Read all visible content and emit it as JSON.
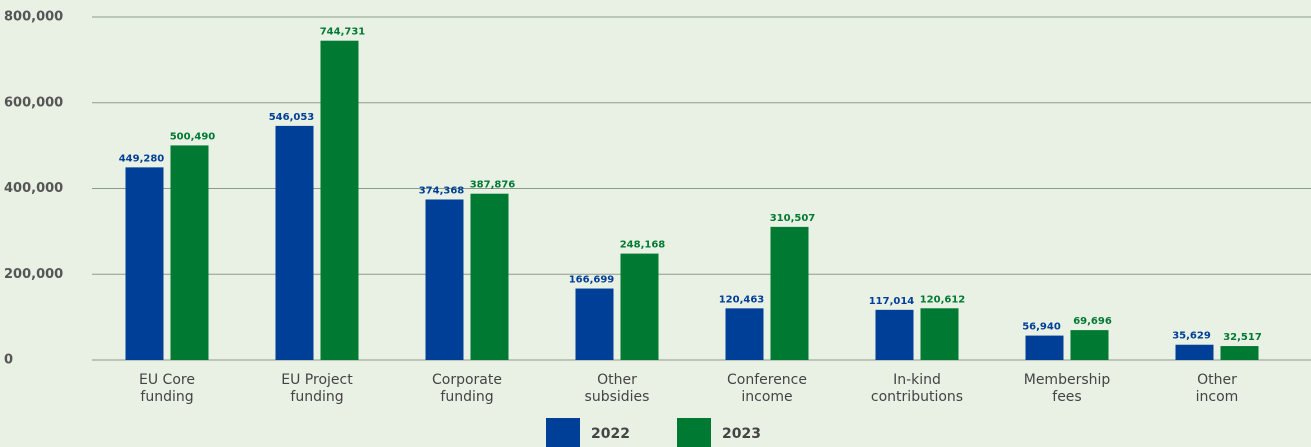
{
  "chart_data": {
    "type": "bar",
    "categories": [
      "EU Core\nfunding",
      "EU Project\nfunding",
      "Corporate\nfunding",
      "Other\nsubsidies",
      "Conference\nincome",
      "In-kind\ncontributions",
      "Membership\nfees",
      "Other\nincom"
    ],
    "series": [
      {
        "name": "2022",
        "color": "#003f98",
        "values": [
          449280,
          546053,
          374368,
          166699,
          120463,
          117014,
          56940,
          35629
        ],
        "value_labels": [
          "449,280",
          "546,053",
          "374,368",
          "166,699",
          "120,463",
          "117,014",
          "56,940",
          "35,629"
        ]
      },
      {
        "name": "2023",
        "color": "#007a33",
        "values": [
          500490,
          744731,
          387876,
          248168,
          310507,
          120612,
          69696,
          32517
        ],
        "value_labels": [
          "500,490",
          "744,731",
          "387,876",
          "248,168",
          "310,507",
          "120,612",
          "69,696",
          "32,517"
        ]
      }
    ],
    "ylim": [
      0,
      800000
    ],
    "yticks": [
      0,
      {
        "value": 200000,
        "label": "200,000"
      },
      {
        "value": 400000,
        "label": "400,000"
      },
      {
        "value": 600000,
        "label": "600,000"
      },
      {
        "value": 800000,
        "label": "800,000"
      }
    ],
    "grid": true,
    "legend": "bottom"
  }
}
